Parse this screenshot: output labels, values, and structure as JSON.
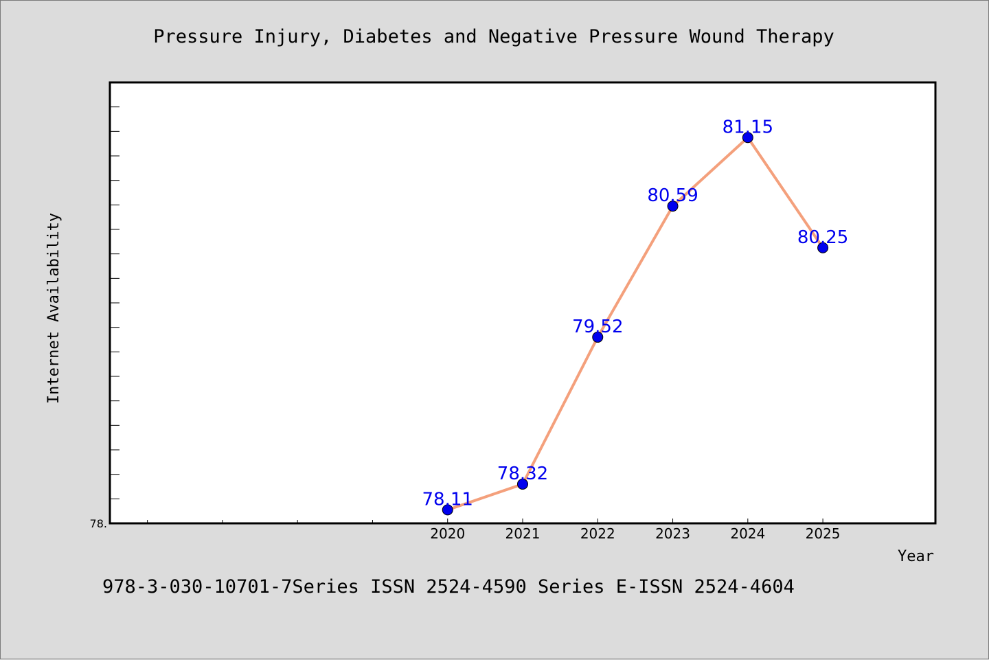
{
  "chart_data": {
    "type": "line",
    "title": "Pressure Injury, Diabetes and Negative Pressure Wound Therapy",
    "xlabel": "Year",
    "ylabel": "Internet Availability",
    "x": [
      "2020",
      "2021",
      "2022",
      "2023",
      "2024",
      "2025"
    ],
    "series": [
      {
        "values": [
          78.11,
          78.32,
          79.52,
          80.59,
          81.15,
          80.25
        ]
      }
    ],
    "data_labels": [
      "78.11",
      "78.32",
      "79.52",
      "80.59",
      "81.15",
      "80.25"
    ],
    "y_min_label": "78.",
    "ylim": [
      78,
      81.6
    ],
    "x_positions_domain": [
      2015.5,
      2026.5
    ],
    "x_minor_ticks": [
      2016,
      2017,
      2018,
      2019
    ],
    "grid": false,
    "legend": "none",
    "colors": {
      "line": "#f4a07c",
      "marker": "#0000ee",
      "data_label": "#0000ee",
      "plot_background": "#ffffff",
      "figure_background": "#dcdcdc"
    }
  },
  "footnote": "978-3-030-10701-7Series ISSN 2524-4590 Series E-ISSN 2524-4604"
}
